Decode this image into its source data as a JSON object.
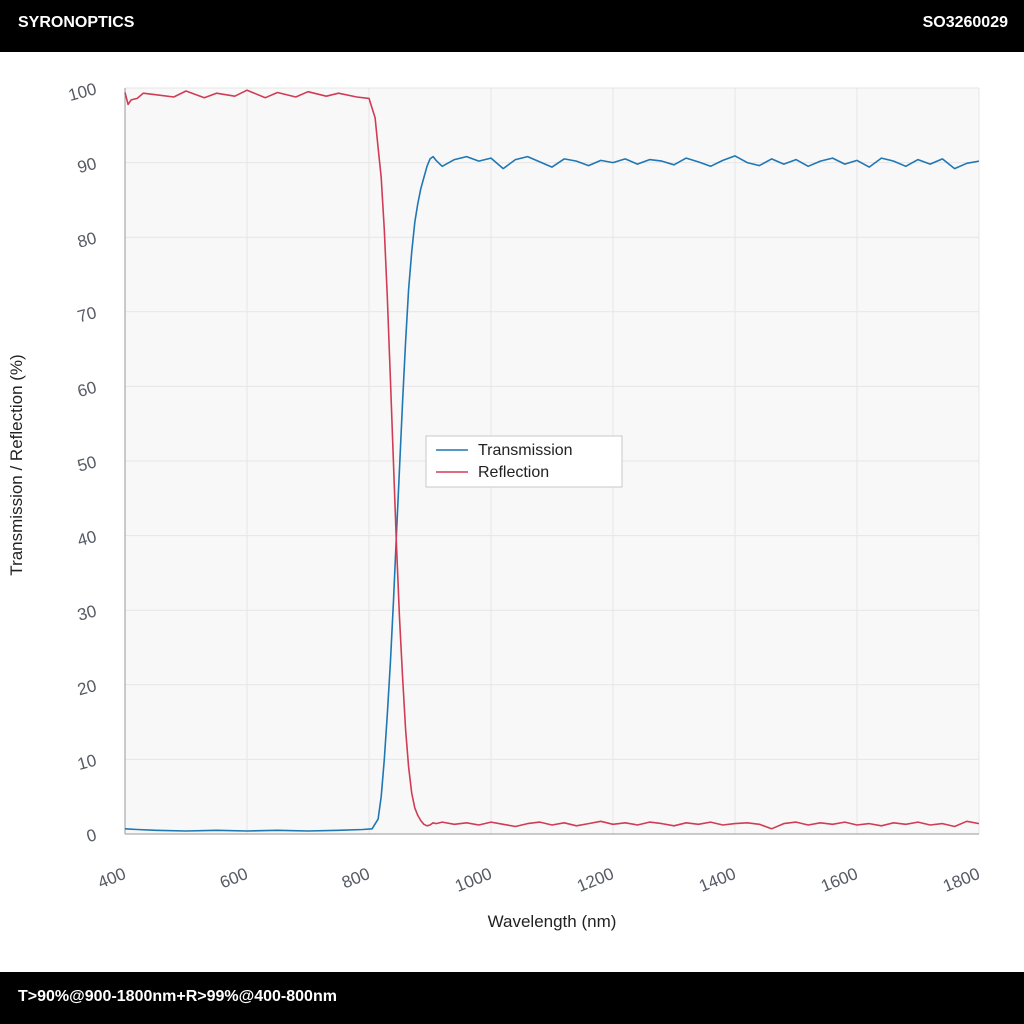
{
  "header": {
    "brand": "SYRONOPTICS",
    "code": "SO3260029"
  },
  "footer": {
    "spec": "T>90%@900-1800nm+R>99%@400-800nm"
  },
  "colors": {
    "transmission": "#1f77b4",
    "reflection": "#d03c55",
    "plot_bg": "#f8f8f8",
    "grid": "#e6e6e6"
  },
  "chart_data": {
    "type": "line",
    "title": "",
    "xlabel": "Wavelength (nm)",
    "ylabel": "Transmission / Reflection (%)",
    "xlim": [
      400,
      1800
    ],
    "ylim": [
      0,
      100
    ],
    "xticks": [
      "400",
      "600",
      "800",
      "1000",
      "1200",
      "1400",
      "1600",
      "1800"
    ],
    "yticks": [
      "0",
      "10",
      "20",
      "30",
      "40",
      "50",
      "60",
      "70",
      "80",
      "90",
      "100"
    ],
    "grid": true,
    "legend_position": "center",
    "series": [
      {
        "name": "Transmission",
        "color": "#1f77b4",
        "x": [
          400,
          420,
          450,
          500,
          550,
          600,
          650,
          700,
          750,
          790,
          805,
          815,
          820,
          825,
          830,
          835,
          840,
          845,
          850,
          855,
          860,
          865,
          870,
          875,
          880,
          885,
          890,
          895,
          900,
          905,
          910,
          920,
          940,
          960,
          980,
          1000,
          1020,
          1040,
          1060,
          1080,
          1100,
          1120,
          1140,
          1160,
          1180,
          1200,
          1220,
          1240,
          1260,
          1280,
          1300,
          1320,
          1340,
          1360,
          1380,
          1400,
          1420,
          1440,
          1460,
          1480,
          1500,
          1520,
          1540,
          1560,
          1580,
          1600,
          1620,
          1640,
          1660,
          1680,
          1700,
          1720,
          1740,
          1760,
          1780,
          1800
        ],
        "y": [
          0.7,
          0.6,
          0.5,
          0.4,
          0.5,
          0.4,
          0.5,
          0.4,
          0.5,
          0.6,
          0.7,
          2,
          5,
          10,
          16,
          23,
          31,
          40,
          49,
          58,
          66,
          73,
          78,
          82,
          84.5,
          86.5,
          88,
          89.5,
          90.5,
          90.8,
          90.3,
          89.5,
          90.4,
          90.8,
          90.2,
          90.6,
          89.2,
          90.4,
          90.8,
          90.1,
          89.4,
          90.5,
          90.2,
          89.6,
          90.3,
          90.0,
          90.5,
          89.8,
          90.4,
          90.2,
          89.7,
          90.6,
          90.1,
          89.5,
          90.3,
          90.9,
          90.0,
          89.6,
          90.5,
          89.8,
          90.4,
          89.5,
          90.2,
          90.6,
          89.8,
          90.3,
          89.4,
          90.6,
          90.2,
          89.5,
          90.4,
          89.8,
          90.5,
          89.2,
          89.9,
          90.2
        ]
      },
      {
        "name": "Reflection",
        "color": "#d03c55",
        "x": [
          400,
          405,
          410,
          420,
          430,
          450,
          480,
          500,
          530,
          550,
          580,
          600,
          630,
          650,
          680,
          700,
          730,
          750,
          780,
          800,
          810,
          815,
          820,
          825,
          830,
          835,
          840,
          845,
          850,
          855,
          860,
          865,
          870,
          875,
          880,
          885,
          890,
          895,
          900,
          905,
          910,
          920,
          940,
          960,
          980,
          1000,
          1020,
          1040,
          1060,
          1080,
          1100,
          1120,
          1140,
          1160,
          1180,
          1200,
          1220,
          1240,
          1260,
          1280,
          1300,
          1320,
          1340,
          1360,
          1380,
          1400,
          1420,
          1440,
          1460,
          1480,
          1500,
          1520,
          1540,
          1560,
          1580,
          1600,
          1620,
          1640,
          1660,
          1680,
          1700,
          1720,
          1740,
          1760,
          1780,
          1800
        ],
        "y": [
          99.4,
          97.8,
          98.4,
          98.6,
          99.3,
          99.1,
          98.8,
          99.6,
          98.7,
          99.3,
          98.9,
          99.7,
          98.7,
          99.4,
          98.8,
          99.5,
          98.9,
          99.3,
          98.8,
          98.6,
          96,
          92,
          88,
          81,
          72,
          61,
          50,
          39,
          29,
          21,
          14,
          9,
          5.5,
          3.5,
          2.5,
          1.8,
          1.3,
          1.1,
          1.2,
          1.5,
          1.4,
          1.6,
          1.3,
          1.5,
          1.2,
          1.6,
          1.3,
          1.0,
          1.4,
          1.6,
          1.2,
          1.5,
          1.1,
          1.4,
          1.7,
          1.3,
          1.5,
          1.2,
          1.6,
          1.4,
          1.1,
          1.5,
          1.3,
          1.6,
          1.2,
          1.4,
          1.5,
          1.3,
          0.7,
          1.4,
          1.6,
          1.2,
          1.5,
          1.3,
          1.6,
          1.2,
          1.4,
          1.1,
          1.5,
          1.3,
          1.6,
          1.2,
          1.4,
          1.0,
          1.7,
          1.4
        ]
      }
    ]
  }
}
